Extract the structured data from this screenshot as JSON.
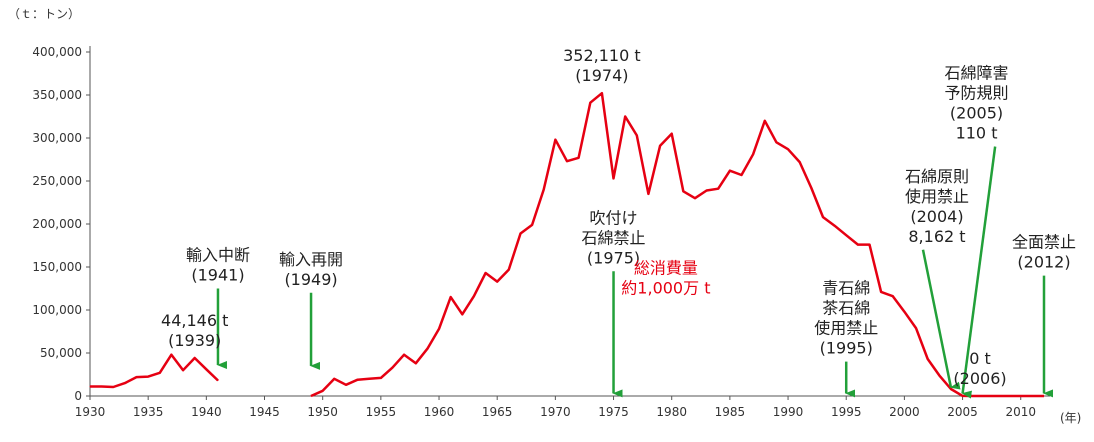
{
  "chart_data": {
    "type": "line",
    "y_unit_label": "（ｔ：トン）",
    "x_unit_label": "(年)",
    "ylim": [
      0,
      400000
    ],
    "xlim": [
      1930,
      2012
    ],
    "y_ticks": [
      0,
      50000,
      100000,
      150000,
      200000,
      250000,
      300000,
      350000,
      400000
    ],
    "y_tick_labels": [
      "0",
      "50,000",
      "100,000",
      "150,000",
      "200,000",
      "250,000",
      "300,000",
      "350,000",
      "400,000"
    ],
    "x_ticks": [
      1930,
      1935,
      1940,
      1945,
      1950,
      1955,
      1960,
      1965,
      1970,
      1975,
      1980,
      1985,
      1990,
      1995,
      2000,
      2005,
      2010
    ],
    "x_tick_labels": [
      "1930",
      "1935",
      "1940",
      "1945",
      "1950",
      "1955",
      "1960",
      "1965",
      "1970",
      "1975",
      "1980",
      "1985",
      "1990",
      "1995",
      "2000",
      "2005",
      "2010"
    ],
    "grid": false,
    "line_color": "#e60012",
    "arrow_color": "#22a039",
    "series": [
      {
        "segments": [
          [
            [
              1930,
              11000
            ],
            [
              1931,
              11000
            ],
            [
              1932,
              10500
            ],
            [
              1933,
              15000
            ],
            [
              1934,
              22000
            ],
            [
              1935,
              22500
            ],
            [
              1936,
              27000
            ],
            [
              1937,
              48000
            ],
            [
              1938,
              30000
            ],
            [
              1939,
              44146
            ],
            [
              1940,
              31000
            ],
            [
              1941,
              18000
            ]
          ],
          [
            [
              1949,
              0
            ],
            [
              1950,
              6000
            ],
            [
              1951,
              20000
            ],
            [
              1952,
              13000
            ],
            [
              1953,
              19000
            ],
            [
              1954,
              20000
            ],
            [
              1955,
              21000
            ],
            [
              1956,
              33000
            ],
            [
              1957,
              48000
            ],
            [
              1958,
              38000
            ],
            [
              1959,
              55000
            ],
            [
              1960,
              78000
            ],
            [
              1961,
              115000
            ],
            [
              1962,
              95000
            ],
            [
              1963,
              116000
            ],
            [
              1964,
              143000
            ],
            [
              1965,
              133000
            ],
            [
              1966,
              147000
            ],
            [
              1967,
              189000
            ],
            [
              1968,
              199000
            ],
            [
              1969,
              240000
            ],
            [
              1970,
              298000
            ],
            [
              1971,
              273000
            ],
            [
              1972,
              277000
            ],
            [
              1973,
              341000
            ],
            [
              1974,
              352110
            ],
            [
              1975,
              253000
            ],
            [
              1976,
              325000
            ],
            [
              1977,
              303000
            ],
            [
              1978,
              235000
            ],
            [
              1979,
              291000
            ],
            [
              1980,
              305000
            ],
            [
              1981,
              238000
            ],
            [
              1982,
              230000
            ],
            [
              1983,
              239000
            ],
            [
              1984,
              241000
            ],
            [
              1985,
              262000
            ],
            [
              1986,
              257000
            ],
            [
              1987,
              281000
            ],
            [
              1988,
              320000
            ],
            [
              1989,
              295000
            ],
            [
              1990,
              287000
            ],
            [
              1991,
              272000
            ],
            [
              1992,
              242000
            ],
            [
              1993,
              208000
            ],
            [
              1994,
              198000
            ],
            [
              1995,
              187000
            ],
            [
              1996,
              176000
            ],
            [
              1997,
              176000
            ],
            [
              1998,
              121000
            ],
            [
              1999,
              116000
            ],
            [
              2000,
              98000
            ],
            [
              2001,
              79000
            ],
            [
              2002,
              43000
            ],
            [
              2003,
              24000
            ],
            [
              2004,
              8162
            ],
            [
              2005,
              110
            ],
            [
              2006,
              0
            ],
            [
              2007,
              0
            ],
            [
              2008,
              0
            ],
            [
              2009,
              0
            ],
            [
              2010,
              0
            ],
            [
              2011,
              0
            ],
            [
              2012,
              0
            ]
          ]
        ]
      }
    ],
    "annotations": [
      {
        "lines": [
          "44,146 t",
          "(1939)"
        ],
        "anchor_x": 1939,
        "anchor_y": 44146,
        "color": "black"
      },
      {
        "lines": [
          "輸入中断",
          "(1941)"
        ],
        "anchor_x": 1941,
        "arrow": true,
        "arrow_top": 125000,
        "arrow_bottom": 36000
      },
      {
        "lines": [
          "輸入再開",
          "(1949)"
        ],
        "anchor_x": 1949,
        "arrow": true,
        "arrow_top": 120000,
        "arrow_bottom": 35000
      },
      {
        "lines": [
          "352,110 t",
          "(1974)"
        ],
        "anchor_x": 1974,
        "anchor_y": 352110
      },
      {
        "lines": [
          "吹付け",
          "石綿禁止",
          "(1975)"
        ],
        "anchor_x": 1975,
        "arrow": true,
        "arrow_top": 145000,
        "arrow_bottom": 3000
      },
      {
        "lines": [
          "総消費量",
          "約1,000万 t"
        ],
        "anchor_x": 1979.5,
        "anchor_y": 105000,
        "color": "red"
      },
      {
        "lines": [
          "青石綿",
          "茶石綿",
          "使用禁止",
          "(1995)"
        ],
        "anchor_x": 1995,
        "arrow": true,
        "arrow_top": 40000,
        "arrow_bottom": 3000
      },
      {
        "lines": [
          "石綿原則",
          "使用禁止",
          "(2004)",
          "8,162 t"
        ],
        "anchor_x": 2002.8,
        "arrow": true,
        "arrow_top": 170000,
        "arrow_from_x": 2001.6,
        "arrow_to_x": 2004,
        "arrow_bottom": 10000
      },
      {
        "lines": [
          "石綿障害",
          "予防規則",
          "(2005)",
          "110 t"
        ],
        "anchor_x": 2006.2,
        "arrow": true,
        "arrow_top": 290000,
        "arrow_from_x": 2007.8,
        "arrow_to_x": 2005,
        "arrow_bottom": 3000
      },
      {
        "lines": [
          "0 t",
          "(2006)"
        ],
        "anchor_x": 2006.5,
        "anchor_y": 0
      },
      {
        "lines": [
          "全面禁止",
          "(2012)"
        ],
        "anchor_x": 2012,
        "arrow": true,
        "arrow_top": 140000,
        "arrow_bottom": 3000
      }
    ]
  }
}
